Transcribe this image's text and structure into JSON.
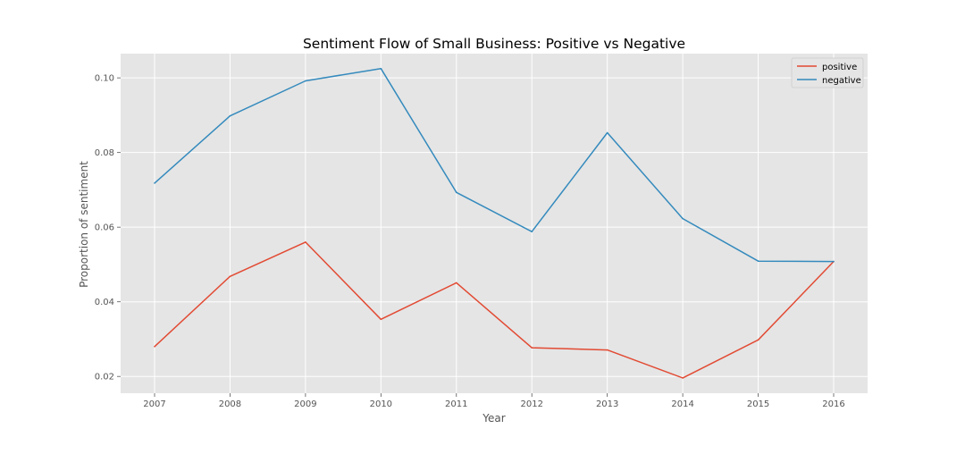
{
  "chart_data": {
    "type": "line",
    "title": "Sentiment Flow of Small Business: Positive vs Negative",
    "xlabel": "Year",
    "ylabel": "Proportion of sentiment",
    "x": [
      2007,
      2008,
      2009,
      2010,
      2011,
      2012,
      2013,
      2014,
      2015,
      2016
    ],
    "x_tick_labels": [
      "2007",
      "2008",
      "2009",
      "2010",
      "2011",
      "2012",
      "2013",
      "2014",
      "2015",
      "2016"
    ],
    "y_ticks": [
      0.02,
      0.04,
      0.06,
      0.08,
      0.1
    ],
    "y_tick_labels": [
      "0.02",
      "0.04",
      "0.06",
      "0.08",
      "0.10"
    ],
    "xlim": [
      2006.55,
      2016.45
    ],
    "ylim": [
      0.0155,
      0.1065
    ],
    "grid": true,
    "legend_position": "top-right",
    "series": [
      {
        "name": "positive",
        "color": "#E24A33",
        "values": [
          0.028,
          0.0468,
          0.056,
          0.0353,
          0.0451,
          0.0277,
          0.0271,
          0.0196,
          0.0298,
          0.0508
        ]
      },
      {
        "name": "negative",
        "color": "#348ABD",
        "values": [
          0.0718,
          0.0898,
          0.0992,
          0.1025,
          0.0693,
          0.0588,
          0.0853,
          0.0623,
          0.0509,
          0.0508
        ]
      }
    ],
    "style": {
      "plot_background": "#E5E5E5",
      "grid_color": "#FFFFFF",
      "text_color": "#555555",
      "title_color": "#000000"
    }
  }
}
